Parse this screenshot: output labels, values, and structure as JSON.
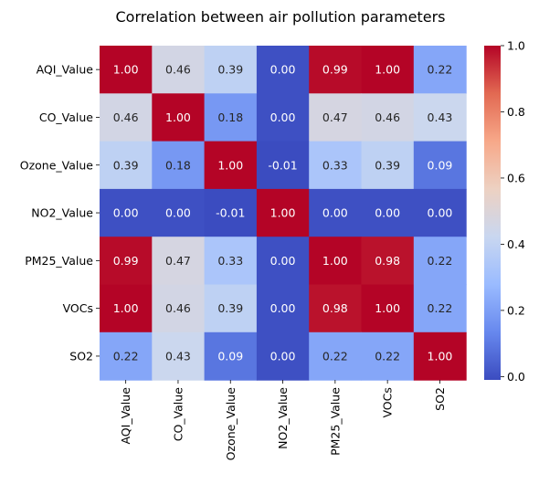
{
  "chart_data": {
    "type": "heatmap",
    "title": "Correlation between air pollution parameters",
    "rows": [
      "AQI_Value",
      "CO_Value",
      "Ozone_Value",
      "NO2_Value",
      "PM25_Value",
      "VOCs",
      "SO2"
    ],
    "columns": [
      "AQI_Value",
      "CO_Value",
      "Ozone_Value",
      "NO2_Value",
      "PM25_Value",
      "VOCs",
      "SO2"
    ],
    "values": [
      [
        1.0,
        0.46,
        0.39,
        0.0,
        0.99,
        1.0,
        0.22
      ],
      [
        0.46,
        1.0,
        0.18,
        0.0,
        0.47,
        0.46,
        0.43
      ],
      [
        0.39,
        0.18,
        1.0,
        -0.01,
        0.33,
        0.39,
        0.09
      ],
      [
        0.0,
        0.0,
        -0.01,
        1.0,
        0.0,
        0.0,
        0.0
      ],
      [
        0.99,
        0.47,
        0.33,
        0.0,
        1.0,
        0.98,
        0.22
      ],
      [
        1.0,
        0.46,
        0.39,
        0.0,
        0.98,
        1.0,
        0.22
      ],
      [
        0.22,
        0.43,
        0.09,
        0.0,
        0.22,
        0.22,
        1.0
      ]
    ],
    "annotation_format": "0.00",
    "colormap": "coolwarm",
    "colormap_stops": [
      "#3b4cc0",
      "#6788ee",
      "#9abbff",
      "#c9d7f0",
      "#edd1c2",
      "#f7a889",
      "#e26952",
      "#b40426"
    ],
    "vmin": -0.01,
    "vmax": 1.0,
    "colorbar": {
      "ticks": [
        0.0,
        0.2,
        0.4,
        0.6,
        0.8,
        1.0
      ],
      "tick_labels": [
        "0.0",
        "0.2",
        "0.4",
        "0.6",
        "0.8",
        "1.0"
      ]
    },
    "grid": false
  }
}
